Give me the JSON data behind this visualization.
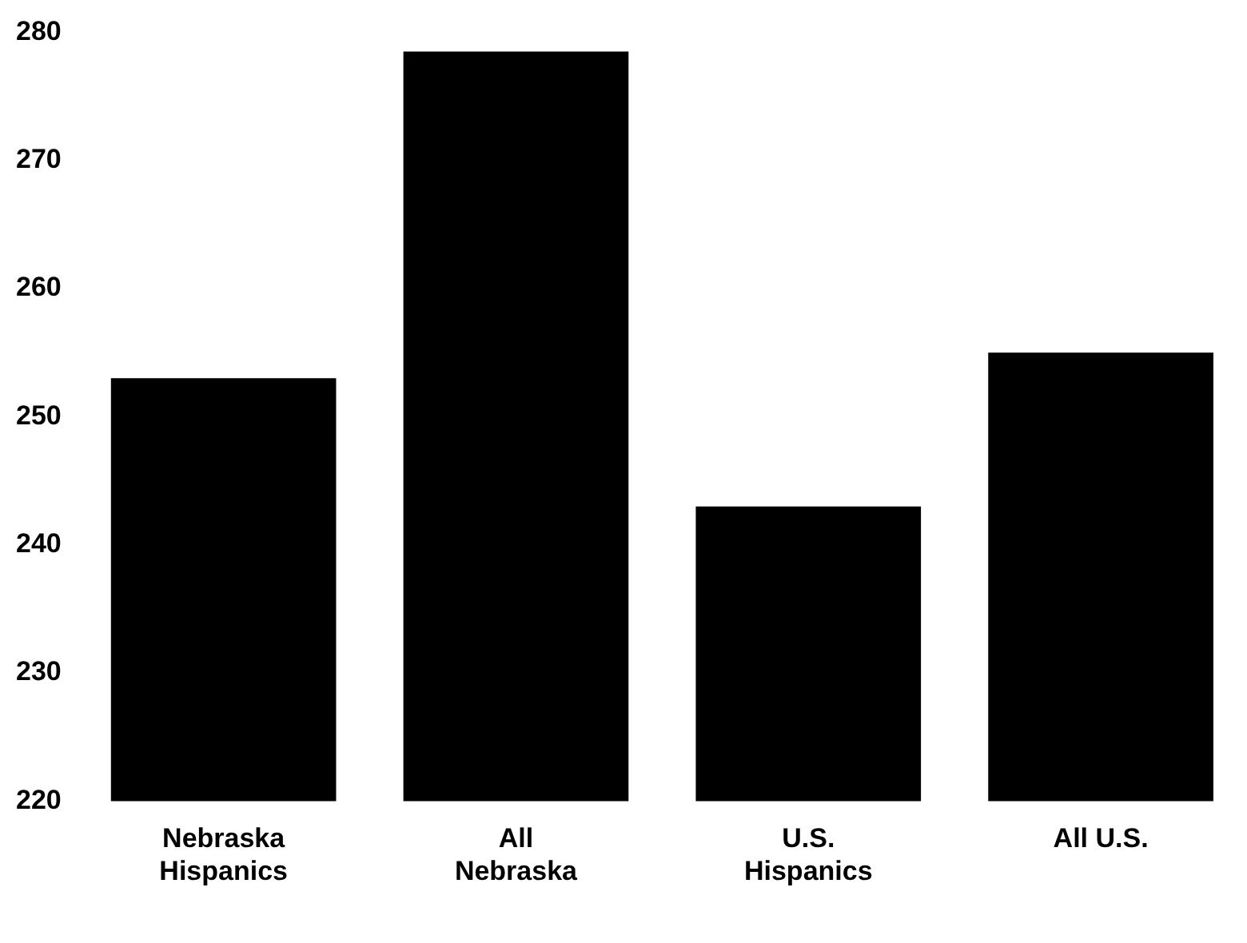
{
  "chart_data": {
    "type": "bar",
    "categories": [
      "Nebraska Hispanics",
      "All Nebraska",
      "U.S. Hispanics",
      "All U.S."
    ],
    "values": [
      253,
      278.5,
      243,
      255
    ],
    "color": "#000000",
    "ylim": [
      220,
      280
    ],
    "yticks": [
      220,
      230,
      240,
      250,
      260,
      270,
      280
    ],
    "grid": false,
    "legend": false
  }
}
